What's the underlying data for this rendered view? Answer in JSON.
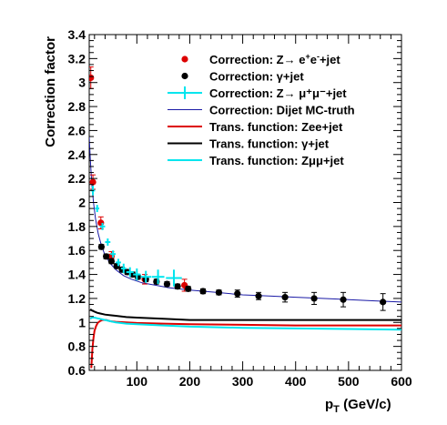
{
  "chart_data": {
    "type": "scatter",
    "title": "",
    "xlabel_main": "p",
    "xlabel_sub": "T",
    "xlabel_tail": " (GeV/c)",
    "ylabel": "Correction factor",
    "xlim": [
      10,
      600
    ],
    "ylim": [
      0.6,
      3.4
    ],
    "log_x": false,
    "grid": false,
    "legend_position": "top-right",
    "x_ticks": [
      100,
      200,
      300,
      400,
      500,
      600
    ],
    "y_ticks": [
      0.6,
      0.8,
      1,
      1.2,
      1.4,
      1.6,
      1.8,
      2,
      2.2,
      2.4,
      2.6,
      2.8,
      3,
      3.2,
      3.4
    ],
    "legend": [
      {
        "key": "zee",
        "label_parts": [
          "Correction: Z",
          "→",
          " e",
          "+",
          "e",
          "-",
          "+jet"
        ],
        "style": "marker",
        "color": "#dd0000"
      },
      {
        "key": "gamma",
        "label": "Correction: γ+jet",
        "style": "marker",
        "color": "#000000"
      },
      {
        "key": "zmumu",
        "label": "Correction: Z→ μ⁺μ⁻+jet",
        "style": "cross",
        "color": "#00e5ee"
      },
      {
        "key": "dijet",
        "label": "Correction: Dijet MC-truth",
        "style": "line",
        "color": "#1a1aa6"
      },
      {
        "key": "tf_zee",
        "label": "Trans. function: Zee+jet",
        "style": "line",
        "color": "#dd0000"
      },
      {
        "key": "tf_gamma",
        "label": "Trans. function: γ+jet",
        "style": "line",
        "color": "#000000"
      },
      {
        "key": "tf_zmumu",
        "label": "Trans. function: Zμμ+jet",
        "style": "line",
        "color": "#00e5ee"
      }
    ],
    "series": [
      {
        "name": "Correction: Z→ e⁺e⁻+jet",
        "kind": "points",
        "color": "#dd0000",
        "x": [
          13,
          17,
          32,
          52,
          115,
          190
        ],
        "y": [
          3.04,
          2.17,
          1.83,
          1.55,
          1.36,
          1.31
        ],
        "yerr": [
          0.09,
          0.06,
          0.05,
          0.04,
          0.04,
          0.05
        ]
      },
      {
        "name": "Correction: γ+jet",
        "kind": "points",
        "color": "#000000",
        "x": [
          33,
          42,
          52,
          62,
          72,
          82,
          92,
          102,
          117,
          137,
          157,
          177,
          197,
          225,
          255,
          290,
          330,
          380,
          435,
          490,
          565
        ],
        "y": [
          1.63,
          1.55,
          1.51,
          1.47,
          1.44,
          1.42,
          1.4,
          1.38,
          1.36,
          1.34,
          1.32,
          1.3,
          1.28,
          1.26,
          1.25,
          1.24,
          1.22,
          1.21,
          1.2,
          1.19,
          1.17
        ],
        "yerr": [
          0.02,
          0.02,
          0.02,
          0.02,
          0.02,
          0.02,
          0.02,
          0.02,
          0.02,
          0.02,
          0.02,
          0.02,
          0.02,
          0.02,
          0.02,
          0.03,
          0.03,
          0.04,
          0.05,
          0.06,
          0.07
        ]
      },
      {
        "name": "Correction: Z→ μ⁺μ⁻+jet",
        "kind": "cross",
        "color": "#00e5ee",
        "x": [
          17,
          25,
          35,
          45,
          55,
          65,
          75,
          87,
          100,
          117,
          140,
          170
        ],
        "y": [
          2.1,
          1.95,
          1.8,
          1.67,
          1.57,
          1.5,
          1.45,
          1.42,
          1.4,
          1.38,
          1.38,
          1.37
        ],
        "xerr": [
          4,
          4,
          5,
          5,
          5,
          5,
          5,
          7,
          7,
          10,
          12,
          15
        ],
        "yerr": [
          0.04,
          0.03,
          0.03,
          0.03,
          0.03,
          0.03,
          0.04,
          0.04,
          0.05,
          0.05,
          0.06,
          0.07
        ]
      },
      {
        "name": "Correction: Dijet MC-truth",
        "kind": "line",
        "color": "#1a1aa6",
        "x": [
          10,
          12,
          15,
          18,
          22,
          27,
          33,
          40,
          50,
          60,
          75,
          90,
          110,
          135,
          160,
          200,
          250,
          300,
          350,
          400,
          450,
          500,
          550,
          600
        ],
        "y": [
          2.55,
          2.36,
          2.15,
          2.0,
          1.86,
          1.74,
          1.64,
          1.56,
          1.49,
          1.44,
          1.39,
          1.36,
          1.33,
          1.31,
          1.29,
          1.27,
          1.25,
          1.23,
          1.22,
          1.21,
          1.2,
          1.19,
          1.18,
          1.17
        ]
      },
      {
        "name": "Trans. function: Zee+jet",
        "kind": "line",
        "color": "#dd0000",
        "x": [
          14,
          16,
          18,
          20,
          23,
          26,
          30,
          35,
          42,
          50,
          60,
          80,
          100,
          150,
          200,
          300,
          400,
          500,
          600
        ],
        "y": [
          0.62,
          0.78,
          0.87,
          0.93,
          0.97,
          0.995,
          1.01,
          1.02,
          1.02,
          1.01,
          1.005,
          1.0,
          0.995,
          0.99,
          0.985,
          0.98,
          0.975,
          0.975,
          0.975
        ]
      },
      {
        "name": "Trans. function: γ+jet",
        "kind": "line",
        "color": "#000000",
        "x": [
          12,
          15,
          20,
          25,
          30,
          40,
          50,
          60,
          80,
          100,
          150,
          200,
          300,
          400,
          500,
          600
        ],
        "y": [
          1.11,
          1.1,
          1.09,
          1.08,
          1.075,
          1.065,
          1.06,
          1.055,
          1.045,
          1.04,
          1.03,
          1.02,
          1.02,
          1.02,
          1.02,
          1.02
        ]
      },
      {
        "name": "Trans. function: Zμμ+jet",
        "kind": "line",
        "color": "#00e5ee",
        "x": [
          12,
          15,
          20,
          25,
          30,
          40,
          50,
          60,
          80,
          100,
          150,
          200,
          300,
          400,
          500,
          600
        ],
        "y": [
          1.03,
          1.04,
          1.04,
          1.035,
          1.03,
          1.02,
          1.01,
          1.0,
          0.99,
          0.985,
          0.975,
          0.965,
          0.955,
          0.95,
          0.945,
          0.94
        ]
      }
    ]
  }
}
